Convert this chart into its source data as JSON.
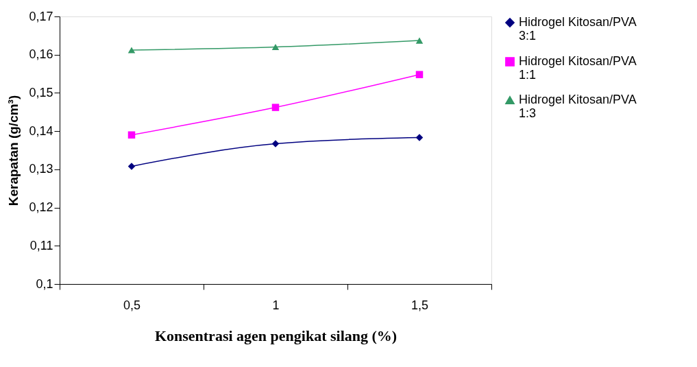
{
  "chart_data": {
    "type": "line",
    "xlabel": "Konsentrasi agen pengikat silang (%)",
    "ylabel": "Kerapatan (g/cm³)",
    "categories": [
      "0,5",
      "1",
      "1,5"
    ],
    "ylim": [
      0.1,
      0.17
    ],
    "yticks": [
      {
        "value": 0.1,
        "label": "0,1"
      },
      {
        "value": 0.11,
        "label": "0,11"
      },
      {
        "value": 0.12,
        "label": "0,12"
      },
      {
        "value": 0.13,
        "label": "0,13"
      },
      {
        "value": 0.14,
        "label": "0,14"
      },
      {
        "value": 0.15,
        "label": "0,15"
      },
      {
        "value": 0.16,
        "label": "0,16"
      },
      {
        "value": 0.17,
        "label": "0,17"
      }
    ],
    "series": [
      {
        "name": "Hidrogel Kitosan/PVA 3:1",
        "color": "#000080",
        "marker": "diamond",
        "values": [
          0.1308,
          0.1367,
          0.1383
        ]
      },
      {
        "name": "Hidrogel Kitosan/PVA 1:1",
        "color": "#ff00ff",
        "marker": "square",
        "values": [
          0.139,
          0.1462,
          0.1548
        ]
      },
      {
        "name": "Hidrogel Kitosan/PVA 1:3",
        "color": "#339966",
        "marker": "triangle",
        "values": [
          0.1612,
          0.162,
          0.1637
        ]
      }
    ],
    "legend": "right",
    "grid": false,
    "line_style": "solid"
  }
}
